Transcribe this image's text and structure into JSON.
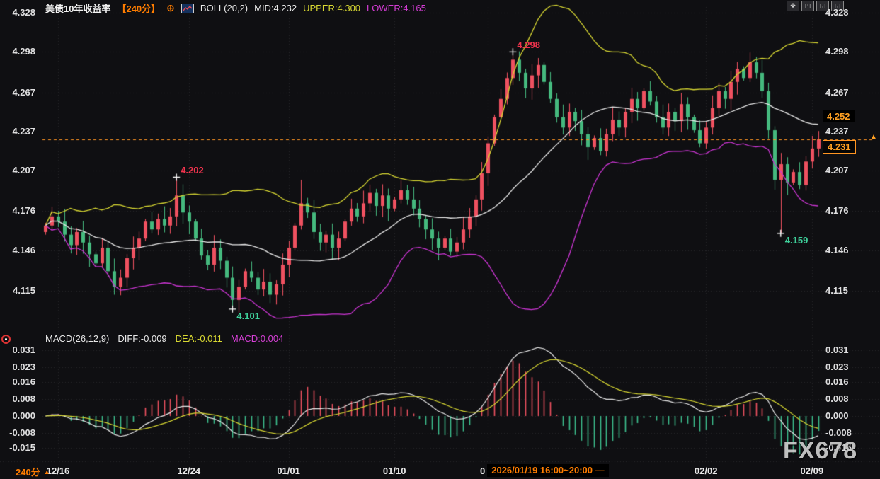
{
  "header": {
    "title": "美债10年收益率",
    "period_tag": "【240分】",
    "add_icon": "⊕",
    "boll_label": "BOLL(20,2)",
    "mid": "MID:4.232",
    "upper": "UPPER:4.300",
    "lower": "LOWER:4.165"
  },
  "toolbar": {
    "icons": [
      {
        "name": "pan-move",
        "glyph": "✥"
      },
      {
        "name": "pane-layout-a",
        "glyph": "◳"
      },
      {
        "name": "pane-layout-b",
        "glyph": "◲"
      },
      {
        "name": "pane-layout-c",
        "glyph": "◱"
      }
    ]
  },
  "macd_header": {
    "label": "MACD(26,12,9)",
    "diff": "DIFF:-0.009",
    "dea": "DEA:-0.011",
    "macd": "MACD:0.004"
  },
  "price_axis": {
    "ticks": [
      "4.328",
      "4.298",
      "4.267",
      "4.237",
      "4.207",
      "4.176",
      "4.146",
      "4.115"
    ]
  },
  "macd_axis": {
    "ticks": [
      "0.031",
      "0.023",
      "0.016",
      "0.008",
      "0.000",
      "-0.008",
      "-0.015"
    ]
  },
  "time_axis": {
    "period_label": "240分",
    "ticks": [
      {
        "label": "12/16",
        "index": 2
      },
      {
        "label": "12/24",
        "index": 23
      },
      {
        "label": "01/01",
        "index": 39
      },
      {
        "label": "01/10",
        "index": 56
      },
      {
        "label": "02/02",
        "index": 106
      },
      {
        "label": "02/09",
        "index": 123
      }
    ]
  },
  "tooltip": {
    "prefix": "0",
    "text": "2026/01/19 16:00~20:00 —",
    "index": 71
  },
  "right_axis_markers": [
    {
      "label": "4.252",
      "price": 4.252,
      "style": "plain"
    },
    {
      "label": "4.231",
      "price": 4.231,
      "style": "boxed"
    }
  ],
  "icons": {
    "up_arrow": "▲",
    "period_arrow": "▲"
  },
  "watermark": "FX678",
  "colors": {
    "background": "#0f0f12",
    "up": "#ef5160",
    "down": "#45b97e",
    "boll_mid": "#e8e8e8",
    "boll_upper": "#d8d832",
    "boll_lower": "#cc35d4",
    "macd_diff": "#e8e8e8",
    "macd_dea": "#d8d832",
    "hist_pos": "#ef5160",
    "hist_neg": "#3cbf8e",
    "price_line": "#ff9522",
    "grid": "rgba(255,255,255,0.10)",
    "annotation_up": "#f0334d",
    "annotation_down": "#3ecf9a",
    "cross": "#ffffff"
  },
  "chart_data": {
    "type": "candlestick",
    "title": "美债10年收益率 240分 (US 10Y yield, 240-min bars) with BOLL(20,2) and MACD(26,12,9)",
    "panes": [
      {
        "name": "price",
        "yticks": [
          4.328,
          4.298,
          4.267,
          4.237,
          4.207,
          4.176,
          4.146,
          4.115
        ]
      },
      {
        "name": "macd",
        "yticks": [
          0.031,
          0.023,
          0.016,
          0.008,
          0.0,
          -0.008,
          -0.015
        ]
      }
    ],
    "open_first": 4.16,
    "closes": [
      4.165,
      4.172,
      4.168,
      4.158,
      4.15,
      4.16,
      4.152,
      4.143,
      4.136,
      4.148,
      4.13,
      4.118,
      4.125,
      4.14,
      4.148,
      4.155,
      4.168,
      4.162,
      4.17,
      4.165,
      4.172,
      4.188,
      4.175,
      4.168,
      4.155,
      4.142,
      4.135,
      4.148,
      4.138,
      4.125,
      4.108,
      4.118,
      4.13,
      4.125,
      4.116,
      4.122,
      4.112,
      4.12,
      4.135,
      4.148,
      4.165,
      4.182,
      4.175,
      4.16,
      4.152,
      4.158,
      4.148,
      4.155,
      4.168,
      4.178,
      4.172,
      4.182,
      4.19,
      4.18,
      4.188,
      4.178,
      4.185,
      4.192,
      4.185,
      4.178,
      4.17,
      4.162,
      4.155,
      4.148,
      4.155,
      4.145,
      4.152,
      4.162,
      4.172,
      4.185,
      4.205,
      4.228,
      4.248,
      4.262,
      4.278,
      4.292,
      4.282,
      4.27,
      4.28,
      4.288,
      4.275,
      4.262,
      4.248,
      4.24,
      4.252,
      4.245,
      4.235,
      4.225,
      4.232,
      4.222,
      4.235,
      4.246,
      4.24,
      4.252,
      4.262,
      4.255,
      4.268,
      4.26,
      4.248,
      4.24,
      4.252,
      4.245,
      4.258,
      4.248,
      4.238,
      4.228,
      4.24,
      4.255,
      4.268,
      4.262,
      4.275,
      4.285,
      4.278,
      4.29,
      4.282,
      4.268,
      4.238,
      4.2,
      4.212,
      4.198,
      4.206,
      4.196,
      4.214,
      4.224,
      4.231
    ],
    "candle_open_rule": "previous_close",
    "wick_overrides": {
      "11": {
        "low": 4.112
      },
      "21": {
        "high": 4.202
      },
      "30": {
        "low": 4.101
      },
      "41": {
        "high": 4.2
      },
      "75": {
        "high": 4.298
      },
      "118": {
        "low": 4.159
      }
    },
    "key_points": [
      {
        "label": "4.202",
        "price": 4.202,
        "index": 21,
        "kind": "high"
      },
      {
        "label": "4.101",
        "price": 4.101,
        "index": 30,
        "kind": "low"
      },
      {
        "label": "4.298",
        "price": 4.298,
        "index": 75,
        "kind": "high"
      },
      {
        "label": "4.159",
        "price": 4.159,
        "index": 118,
        "kind": "low"
      }
    ],
    "boll": {
      "period": 20,
      "mult": 2,
      "last": {
        "mid": 4.232,
        "upper": 4.3,
        "lower": 4.165
      }
    },
    "macd": {
      "fast": 12,
      "slow": 26,
      "signal": 9,
      "last": {
        "diff": -0.009,
        "dea": -0.011,
        "macd": 0.004
      }
    },
    "current_price": 4.231,
    "marker_price": 4.252
  }
}
